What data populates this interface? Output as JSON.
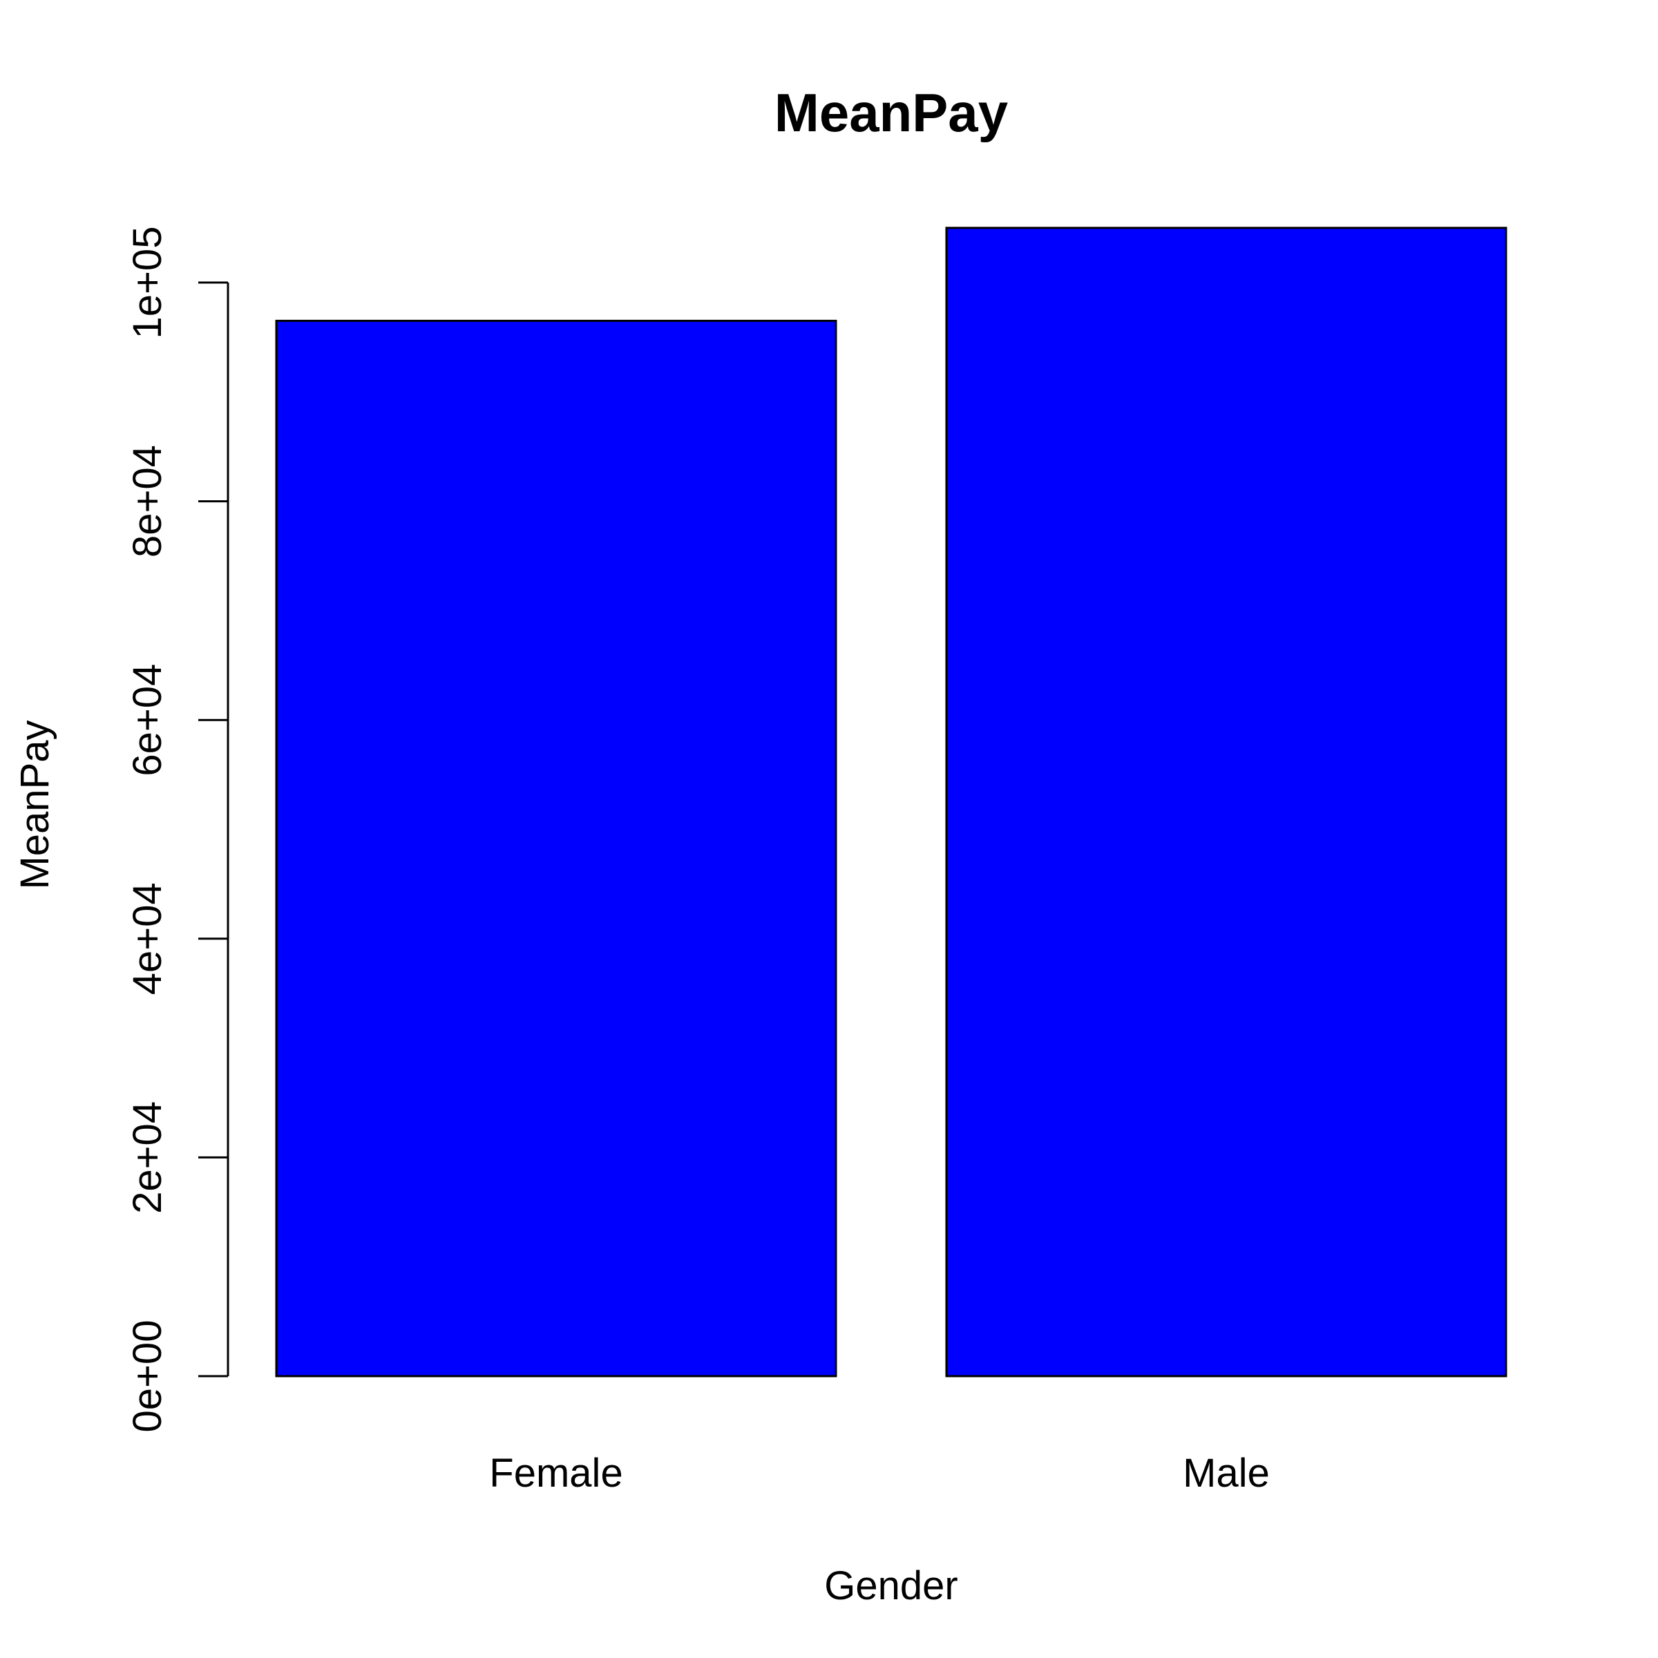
{
  "chart_data": {
    "type": "bar",
    "title": "MeanPay",
    "xlabel": "Gender",
    "ylabel": "MeanPay",
    "categories": [
      "Female",
      "Male"
    ],
    "values": [
      96500,
      105000
    ],
    "ylim": [
      0,
      105000
    ],
    "yticks": [
      0,
      20000,
      40000,
      60000,
      80000,
      100000
    ],
    "ytick_labels": [
      "0e+00",
      "2e+04",
      "4e+04",
      "6e+04",
      "8e+04",
      "1e+05"
    ],
    "bar_color": "#0000ff",
    "grid": false,
    "legend": false
  }
}
